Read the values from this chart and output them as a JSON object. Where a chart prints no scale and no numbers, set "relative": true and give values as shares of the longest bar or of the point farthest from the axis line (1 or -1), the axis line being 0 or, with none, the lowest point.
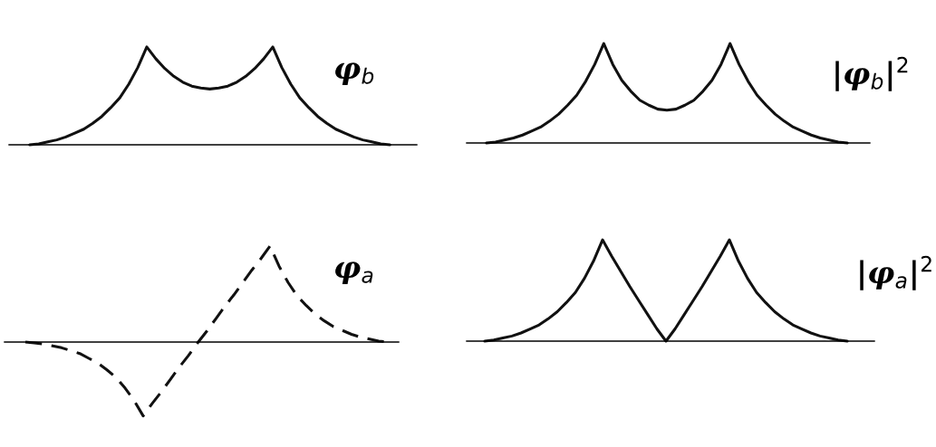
{
  "chart_data": [
    {
      "type": "line",
      "title": "φ$_{b}$",
      "relative": true,
      "line_style": "solid",
      "categories": [
        null,
        null,
        null,
        null,
        null,
        null,
        null,
        null,
        null,
        null,
        null,
        null,
        null,
        null,
        null,
        null,
        null,
        null,
        null,
        null,
        null,
        null,
        null,
        null,
        null,
        null,
        null,
        null,
        null,
        null,
        null,
        null,
        null,
        null,
        null,
        null,
        null,
        null,
        null,
        null,
        null
      ],
      "series": [
        {
          "color": "#111111",
          "values": [
            0,
            0.01,
            0.03,
            0.05,
            0.08,
            0.12,
            0.16,
            0.22,
            0.29,
            0.38,
            0.48,
            0.62,
            0.79,
            1,
            0.88,
            0.78,
            0.7,
            0.64,
            0.6,
            0.58,
            0.57,
            0.58,
            0.6,
            0.64,
            0.7,
            0.78,
            0.88,
            1,
            0.79,
            0.62,
            0.48,
            0.38,
            0.29,
            0.22,
            0.16,
            0.12,
            0.08,
            0.05,
            0.03,
            0.01,
            0
          ]
        }
      ]
    },
    {
      "type": "line",
      "title": "|φ$_{b}$|$^{2}$",
      "relative": true,
      "line_style": "solid",
      "categories": [
        null,
        null,
        null,
        null,
        null,
        null,
        null,
        null,
        null,
        null,
        null,
        null,
        null,
        null,
        null,
        null,
        null,
        null,
        null,
        null,
        null,
        null,
        null,
        null,
        null,
        null,
        null,
        null,
        null,
        null,
        null,
        null,
        null,
        null,
        null,
        null,
        null,
        null,
        null,
        null,
        null
      ],
      "series": [
        {
          "color": "#111111",
          "values": [
            0,
            0.01,
            0.03,
            0.05,
            0.08,
            0.12,
            0.16,
            0.22,
            0.29,
            0.38,
            0.48,
            0.62,
            0.79,
            1,
            0.79,
            0.63,
            0.52,
            0.43,
            0.38,
            0.34,
            0.33,
            0.34,
            0.38,
            0.43,
            0.52,
            0.63,
            0.79,
            1,
            0.79,
            0.62,
            0.48,
            0.38,
            0.29,
            0.22,
            0.16,
            0.12,
            0.08,
            0.05,
            0.03,
            0.01,
            0
          ]
        }
      ]
    },
    {
      "type": "line",
      "title": "φ$_{a}$",
      "relative": true,
      "line_style": "dashed",
      "categories": [
        null,
        null,
        null,
        null,
        null,
        null,
        null,
        null,
        null,
        null,
        null,
        null,
        null,
        null,
        null,
        null,
        null,
        null,
        null,
        null,
        null,
        null,
        null,
        null,
        null,
        null,
        null,
        null,
        null,
        null,
        null,
        null,
        null,
        null,
        null,
        null,
        null,
        null,
        null,
        null,
        null
      ],
      "series": [
        {
          "color": "#111111",
          "values": [
            0,
            -0.01,
            -0.02,
            -0.04,
            -0.06,
            -0.09,
            -0.12,
            -0.17,
            -0.22,
            -0.29,
            -0.37,
            -0.48,
            -0.61,
            -0.77,
            -0.64,
            -0.52,
            -0.39,
            -0.26,
            -0.14,
            -0.01,
            0.11,
            0.24,
            0.37,
            0.49,
            0.62,
            0.75,
            0.87,
            1,
            0.79,
            0.62,
            0.48,
            0.38,
            0.29,
            0.22,
            0.16,
            0.12,
            0.08,
            0.05,
            0.03,
            0.01,
            0
          ]
        }
      ]
    },
    {
      "type": "line",
      "title": "|φ$_{a}$|$^{2}$",
      "relative": true,
      "line_style": "solid",
      "categories": [
        null,
        null,
        null,
        null,
        null,
        null,
        null,
        null,
        null,
        null,
        null,
        null,
        null,
        null,
        null,
        null,
        null,
        null,
        null,
        null,
        null,
        null,
        null,
        null,
        null,
        null,
        null,
        null,
        null,
        null,
        null,
        null,
        null,
        null,
        null,
        null,
        null,
        null,
        null,
        null,
        null
      ],
      "series": [
        {
          "color": "#111111",
          "values": [
            0,
            0.01,
            0.03,
            0.05,
            0.08,
            0.12,
            0.16,
            0.22,
            0.29,
            0.38,
            0.48,
            0.62,
            0.79,
            1,
            0.84,
            0.69,
            0.54,
            0.4,
            0.26,
            0.12,
            0,
            0.12,
            0.26,
            0.4,
            0.54,
            0.69,
            0.84,
            1,
            0.79,
            0.62,
            0.48,
            0.38,
            0.29,
            0.22,
            0.16,
            0.12,
            0.08,
            0.05,
            0.03,
            0.01,
            0
          ]
        }
      ]
    }
  ]
}
